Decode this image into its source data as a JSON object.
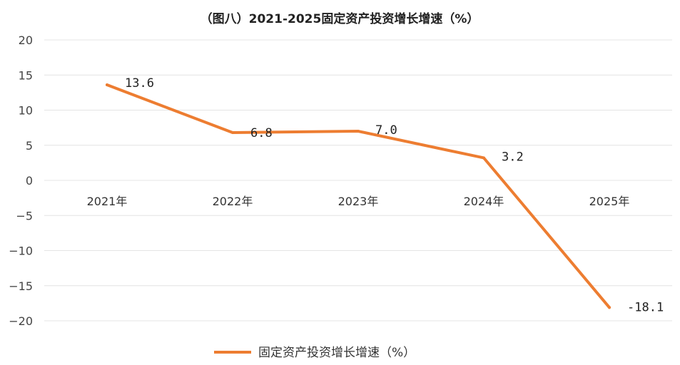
{
  "chart_data": {
    "type": "line",
    "title": "（图八）2021-2025固定资产投资增长增速（%）",
    "xlabel": "",
    "ylabel": "",
    "categories": [
      "2021年",
      "2022年",
      "2023年",
      "2024年",
      "2025年"
    ],
    "series": [
      {
        "name": "固定资产投资增长增速（%）",
        "values": [
          13.6,
          6.8,
          7.0,
          3.2,
          -18.1
        ],
        "labels": [
          "13.6",
          "6.8",
          "7.0",
          "3.2",
          "-18.1"
        ],
        "color": "#ED7D31"
      }
    ],
    "ylim": [
      -20,
      20
    ],
    "yticks": [
      20,
      15,
      10,
      5,
      0,
      -5,
      -10,
      -15,
      -20
    ],
    "ytick_labels": [
      "20",
      "15",
      "10",
      "5",
      "0",
      "−5",
      "−10",
      "−15",
      "−20"
    ],
    "grid": true,
    "legend": "bottom"
  }
}
